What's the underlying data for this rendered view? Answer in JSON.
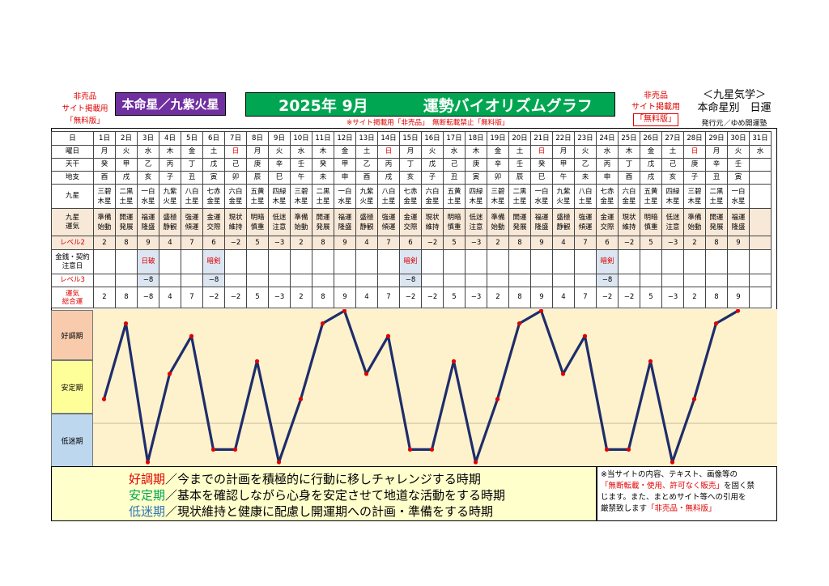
{
  "header": {
    "not_for_sale_left": [
      "非売品",
      "サイト掲載用",
      "「無料版」"
    ],
    "honmei": "本命星／九紫火星",
    "title_date": "2025年 9月",
    "title_text": "運勢バイオリズムグラフ",
    "not_for_sale_right": [
      "非売品",
      "サイト掲載用",
      "「無料版」"
    ],
    "kyusei_title": "＜九星気学＞",
    "kyusei_sub": "本命星別　日運",
    "publisher": "発行元／ゆめ開運塾",
    "notice": "※サイト掲載用「非売品」　無断転載禁止「無料版」"
  },
  "colors": {
    "title_green": "#00a651",
    "honmei_purple": "#7030a0",
    "line": "#1f2d6b",
    "point": "#e00000",
    "good": "#f8cbad",
    "stable": "#ffff99",
    "low": "#bdd7ee"
  },
  "row_labels": {
    "day": "日",
    "weekday": "曜日",
    "tenkan": "天干",
    "chishi": "地支",
    "kyusei": "九星",
    "unki": "九星\n運気",
    "level2": "レベル2",
    "caution": "金銭・契約\n注意日",
    "level3": "レベル3",
    "total": "運気\n総合運"
  },
  "days": [
    "1日",
    "2日",
    "3日",
    "4日",
    "5日",
    "6日",
    "7日",
    "8日",
    "9日",
    "10日",
    "11日",
    "12日",
    "13日",
    "14日",
    "15日",
    "16日",
    "17日",
    "18日",
    "19日",
    "20日",
    "21日",
    "22日",
    "23日",
    "24日",
    "25日",
    "26日",
    "27日",
    "28日",
    "29日",
    "30日",
    "31日"
  ],
  "weekdays": [
    "月",
    "火",
    "水",
    "木",
    "金",
    "土",
    "日",
    "月",
    "火",
    "水",
    "木",
    "金",
    "土",
    "日",
    "月",
    "火",
    "水",
    "木",
    "金",
    "土",
    "日",
    "月",
    "火",
    "水",
    "木",
    "金",
    "土",
    "日",
    "月",
    "火",
    "水"
  ],
  "sunday_indexes": [
    6,
    13,
    20,
    27
  ],
  "tenkan": [
    "癸",
    "甲",
    "乙",
    "丙",
    "丁",
    "戊",
    "己",
    "庚",
    "辛",
    "壬",
    "癸",
    "甲",
    "乙",
    "丙",
    "丁",
    "戊",
    "己",
    "庚",
    "辛",
    "壬",
    "癸",
    "甲",
    "乙",
    "丙",
    "丁",
    "戊",
    "己",
    "庚",
    "辛",
    "壬",
    ""
  ],
  "chishi": [
    "酉",
    "戌",
    "亥",
    "子",
    "丑",
    "寅",
    "卯",
    "辰",
    "巳",
    "午",
    "未",
    "申",
    "酉",
    "戌",
    "亥",
    "子",
    "丑",
    "寅",
    "卯",
    "辰",
    "巳",
    "午",
    "未",
    "申",
    "酉",
    "戌",
    "亥",
    "子",
    "丑",
    "寅",
    ""
  ],
  "kyusei": [
    [
      "三碧",
      "木星"
    ],
    [
      "二黒",
      "土星"
    ],
    [
      "一白",
      "水星"
    ],
    [
      "九紫",
      "火星"
    ],
    [
      "八白",
      "土星"
    ],
    [
      "七赤",
      "金星"
    ],
    [
      "六白",
      "金星"
    ],
    [
      "五黄",
      "土星"
    ],
    [
      "四緑",
      "木星"
    ],
    [
      "三碧",
      "木星"
    ],
    [
      "二黒",
      "土星"
    ],
    [
      "一白",
      "水星"
    ],
    [
      "九紫",
      "火星"
    ],
    [
      "八白",
      "土星"
    ],
    [
      "七赤",
      "金星"
    ],
    [
      "六白",
      "金星"
    ],
    [
      "五黄",
      "土星"
    ],
    [
      "四緑",
      "木星"
    ],
    [
      "三碧",
      "木星"
    ],
    [
      "二黒",
      "土星"
    ],
    [
      "一白",
      "水星"
    ],
    [
      "九紫",
      "火星"
    ],
    [
      "八白",
      "土星"
    ],
    [
      "七赤",
      "金星"
    ],
    [
      "六白",
      "金星"
    ],
    [
      "五黄",
      "土星"
    ],
    [
      "四緑",
      "木星"
    ],
    [
      "三碧",
      "木星"
    ],
    [
      "二黒",
      "土星"
    ],
    [
      "一白",
      "水星"
    ],
    [
      "",
      ""
    ]
  ],
  "unki": [
    [
      "準備",
      "始動"
    ],
    [
      "開運",
      "発展"
    ],
    [
      "福運",
      "隆盛"
    ],
    [
      "盛極",
      "静観"
    ],
    [
      "強運",
      "傾運"
    ],
    [
      "金運",
      "交際"
    ],
    [
      "現状",
      "維持"
    ],
    [
      "明暗",
      "慎重"
    ],
    [
      "低迷",
      "注意"
    ],
    [
      "準備",
      "始動"
    ],
    [
      "開運",
      "発展"
    ],
    [
      "福運",
      "隆盛"
    ],
    [
      "盛極",
      "静観"
    ],
    [
      "強運",
      "傾運"
    ],
    [
      "金運",
      "交際"
    ],
    [
      "現状",
      "維持"
    ],
    [
      "明暗",
      "慎重"
    ],
    [
      "低迷",
      "注意"
    ],
    [
      "準備",
      "始動"
    ],
    [
      "開運",
      "発展"
    ],
    [
      "福運",
      "隆盛"
    ],
    [
      "盛極",
      "静観"
    ],
    [
      "強運",
      "傾運"
    ],
    [
      "金運",
      "交際"
    ],
    [
      "現状",
      "維持"
    ],
    [
      "明暗",
      "慎重"
    ],
    [
      "低迷",
      "注意"
    ],
    [
      "準備",
      "始動"
    ],
    [
      "開運",
      "発展"
    ],
    [
      "福運",
      "隆盛"
    ],
    [
      "",
      ""
    ]
  ],
  "level2": [
    "2",
    "8",
    "9",
    "4",
    "7",
    "6",
    "−2",
    "5",
    "−3",
    "2",
    "8",
    "9",
    "4",
    "7",
    "6",
    "−2",
    "5",
    "−3",
    "2",
    "8",
    "9",
    "4",
    "7",
    "6",
    "−2",
    "5",
    "−3",
    "2",
    "8",
    "9",
    ""
  ],
  "caution": [
    "",
    "",
    "日破",
    "",
    "",
    "暗剣",
    "",
    "",
    "",
    "",
    "",
    "",
    "",
    "",
    "暗剣",
    "",
    "",
    "",
    "",
    "",
    "",
    "",
    "",
    "暗剣",
    "",
    "",
    "",
    "",
    "",
    "",
    ""
  ],
  "level3": [
    "",
    "",
    "−8",
    "",
    "",
    "−8",
    "",
    "",
    "",
    "",
    "",
    "",
    "",
    "",
    "−8",
    "",
    "",
    "",
    "",
    "",
    "",
    "",
    "",
    "−8",
    "",
    "",
    "",
    "",
    "",
    "",
    ""
  ],
  "total": [
    "2",
    "8",
    "−8",
    "4",
    "7",
    "−2",
    "−2",
    "5",
    "−3",
    "2",
    "8",
    "9",
    "4",
    "7",
    "−2",
    "−2",
    "5",
    "−3",
    "2",
    "8",
    "9",
    "4",
    "7",
    "−2",
    "−2",
    "5",
    "−3",
    "2",
    "8",
    "9",
    ""
  ],
  "chart_data": {
    "type": "line",
    "title": "運勢バイオリズムグラフ",
    "x": [
      "1日",
      "2日",
      "3日",
      "4日",
      "5日",
      "6日",
      "7日",
      "8日",
      "9日",
      "10日",
      "11日",
      "12日",
      "13日",
      "14日",
      "15日",
      "16日",
      "17日",
      "18日",
      "19日",
      "20日",
      "21日",
      "22日",
      "23日",
      "24日",
      "25日",
      "26日",
      "27日",
      "28日",
      "29日",
      "30日",
      "31日"
    ],
    "series": [
      {
        "name": "運気総合運",
        "values": [
          2,
          8,
          -8,
          4,
          7,
          -2,
          -2,
          5,
          -3,
          2,
          8,
          9,
          4,
          7,
          -2,
          -2,
          5,
          -3,
          2,
          8,
          9,
          4,
          7,
          -2,
          -2,
          5,
          -3,
          2,
          8,
          9,
          null
        ]
      }
    ],
    "ylim": [
      -3,
      9
    ],
    "zones": [
      "好調期",
      "安定期",
      "低迷期"
    ]
  },
  "legend": {
    "good_label": "好調期",
    "good_text": "／今までの計画を積極的に行動に移しチャレンジする時期",
    "stable_label": "安定期",
    "stable_text": "／基本を確認しながら心身を安定させて地道な活動をする時期",
    "low_label": "低迷期",
    "low_text": "／現状維持と健康に配慮し開運期への計画・準備をする時期"
  },
  "copyright": {
    "line1": "※当サイトの内容、テキスト、画像等の",
    "line2_red": "「無断転載・使用、許可なく販売」",
    "line2_tail": "を固く禁",
    "line3": "じます。また、まとめサイト等への引用を",
    "line4": "厳禁致します",
    "line4_red": "「非売品・無料版」"
  }
}
